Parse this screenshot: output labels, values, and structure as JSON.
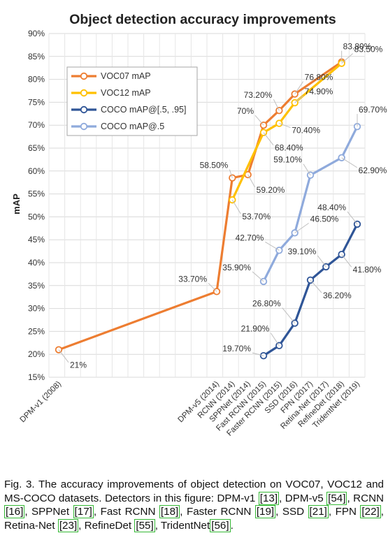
{
  "chart_data": {
    "type": "line",
    "title": "Object detection accuracy improvements",
    "ylabel": "mAP",
    "xlabel": "",
    "ylim": [
      15,
      90
    ],
    "yticks": [
      "15%",
      "20%",
      "25%",
      "30%",
      "35%",
      "40%",
      "45%",
      "50%",
      "55%",
      "60%",
      "65%",
      "70%",
      "75%",
      "80%",
      "85%",
      "90%"
    ],
    "categories": [
      "DPM-v1 (2008)",
      "DPM-v5 (2014)",
      "RCNN (2014)",
      "SPPNet (2014)",
      "Fast RCNN (2015)",
      "Faster RCNN (2015)",
      "SSD (2016)",
      "FPN (2017)",
      "Retina-Net (2017)",
      "RefineDet (2018)",
      "TridentNet (2019)"
    ],
    "x_years": [
      2008,
      2014,
      2014,
      2014,
      2015,
      2015,
      2016,
      2017,
      2017,
      2018,
      2019
    ],
    "grid": true,
    "legend_position": "top-left",
    "series": [
      {
        "name": "VOC07 mAP",
        "color": "#ED7D31",
        "points": [
          {
            "cat": 0,
            "y": 21,
            "label": "21%"
          },
          {
            "cat": 1,
            "y": 33.7,
            "label": "33.70%"
          },
          {
            "cat": 2,
            "y": 58.5,
            "label": "58.50%"
          },
          {
            "cat": 3,
            "y": 59.2,
            "label": "59.20%"
          },
          {
            "cat": 4,
            "y": 70,
            "label": "70%"
          },
          {
            "cat": 5,
            "y": 73.2,
            "label": "73.20%"
          },
          {
            "cat": 6,
            "y": 76.8,
            "label": "76.80%"
          },
          {
            "cat": 9,
            "y": 83.8,
            "label": "83.80%"
          }
        ]
      },
      {
        "name": "VOC12 mAP",
        "color": "#FFC000",
        "points": [
          {
            "cat": 2,
            "y": 53.7,
            "label": "53.70%"
          },
          {
            "cat": 4,
            "y": 68.4,
            "label": "68.40%"
          },
          {
            "cat": 5,
            "y": 70.4,
            "label": "70.40%"
          },
          {
            "cat": 6,
            "y": 74.9,
            "label": "74.90%"
          },
          {
            "cat": 9,
            "y": 83.5,
            "label": "83.50%"
          }
        ]
      },
      {
        "name": "COCO mAP@[.5, .95]",
        "color": "#2F5597",
        "points": [
          {
            "cat": 4,
            "y": 19.7,
            "label": "19.70%"
          },
          {
            "cat": 5,
            "y": 21.9,
            "label": "21.90%"
          },
          {
            "cat": 6,
            "y": 26.8,
            "label": "26.80%"
          },
          {
            "cat": 7,
            "y": 36.2,
            "label": "36.20%"
          },
          {
            "cat": 8,
            "y": 39.1,
            "label": "39.10%"
          },
          {
            "cat": 9,
            "y": 41.8,
            "label": "41.80%"
          },
          {
            "cat": 10,
            "y": 48.4,
            "label": "48.40%"
          }
        ]
      },
      {
        "name": "COCO mAP@.5",
        "color": "#8FAADC",
        "points": [
          {
            "cat": 4,
            "y": 35.9,
            "label": "35.90%"
          },
          {
            "cat": 5,
            "y": 42.7,
            "label": "42.70%"
          },
          {
            "cat": 6,
            "y": 46.5,
            "label": "46.50%"
          },
          {
            "cat": 7,
            "y": 59.1,
            "label": "59.10%"
          },
          {
            "cat": 9,
            "y": 62.9,
            "label": "62.90%"
          },
          {
            "cat": 10,
            "y": 69.7,
            "label": "69.70%"
          }
        ]
      }
    ]
  },
  "caption": {
    "parts": [
      {
        "t": "Fig. 3. The accuracy improvements of object detection on VOC07, VOC12 and MS-COCO datasets. Detectors in this figure: DPM-v1 "
      },
      {
        "ref": "13"
      },
      {
        "t": ", DPM-v5 "
      },
      {
        "ref": "54"
      },
      {
        "t": ", RCNN "
      },
      {
        "ref": "16"
      },
      {
        "t": ", SPPNet "
      },
      {
        "ref": "17"
      },
      {
        "t": ", Fast RCNN "
      },
      {
        "ref": "18"
      },
      {
        "t": ", Faster RCNN "
      },
      {
        "ref": "19"
      },
      {
        "t": ", SSD "
      },
      {
        "ref": "21"
      },
      {
        "t": ", FPN "
      },
      {
        "ref": "22"
      },
      {
        "t": ", Retina-Net "
      },
      {
        "ref": "23"
      },
      {
        "t": ", RefineDet "
      },
      {
        "ref": "55"
      },
      {
        "t": ", TridentNet"
      },
      {
        "ref": "56"
      },
      {
        "t": "."
      }
    ]
  }
}
